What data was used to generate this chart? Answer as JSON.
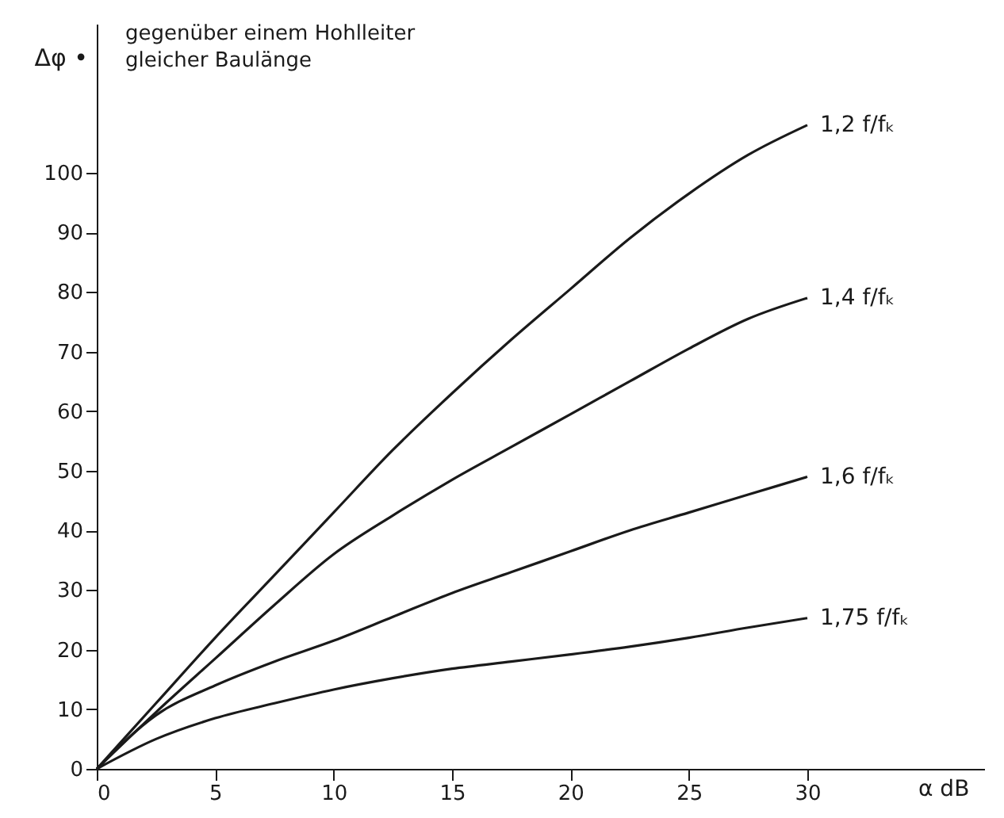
{
  "chart_data": {
    "type": "line",
    "xlabel": "α dB",
    "ylabel": "Δφ •",
    "annotations": [
      "gegenüber einem Hohlleiter\ngleicher Baulänge"
    ],
    "x": [
      0,
      2.5,
      5,
      7.5,
      10,
      12.5,
      15,
      17.5,
      20,
      22.5,
      25,
      27.5,
      30
    ],
    "series": [
      {
        "name": "1,2 f/fₖ",
        "color": "#1a1a1a",
        "values": [
          0,
          11,
          22,
          32.5,
          43,
          53.5,
          63,
          72,
          80.5,
          89,
          96.5,
          103,
          108
        ]
      },
      {
        "name": "1,4 f/fₖ",
        "color": "#1a1a1a",
        "values": [
          0,
          9.5,
          18.5,
          27.5,
          36,
          42.5,
          48.5,
          54,
          59.5,
          65,
          70.5,
          75.5,
          79
        ]
      },
      {
        "name": "1,6 f/fₖ",
        "color": "#1a1a1a",
        "values": [
          0,
          9,
          14,
          18,
          21.5,
          25.5,
          29.5,
          33,
          36.5,
          40,
          43,
          46,
          49
        ]
      },
      {
        "name": "1,75 f/fₖ",
        "color": "#1a1a1a",
        "values": [
          0,
          5,
          8.5,
          11,
          13.3,
          15.2,
          16.8,
          18,
          19.2,
          20.5,
          22,
          23.7,
          25.3
        ]
      }
    ],
    "xlim": [
      0,
      37.5
    ],
    "ylim": [
      0,
      125
    ],
    "xticks": [
      0,
      5,
      10,
      15,
      20,
      25,
      30
    ],
    "yticks": [
      0,
      10,
      20,
      30,
      40,
      50,
      60,
      70,
      80,
      90,
      100
    ],
    "grid": false,
    "legend": false,
    "marker": "none",
    "line_style": "solid"
  }
}
